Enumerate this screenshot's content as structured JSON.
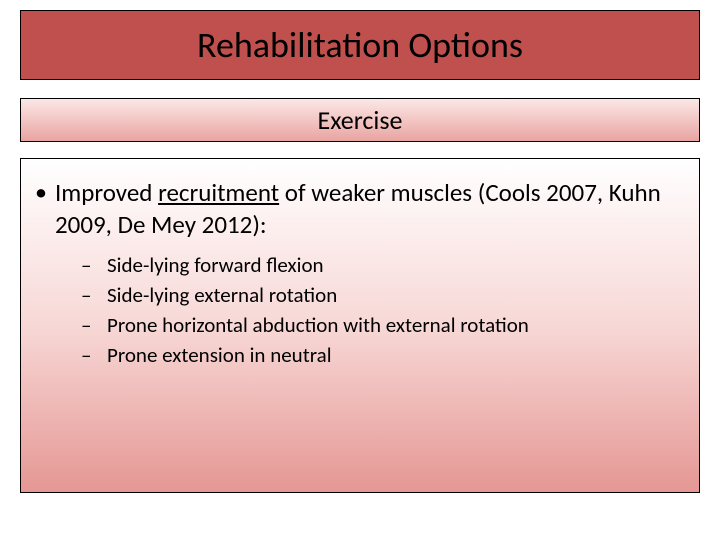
{
  "slide": {
    "title": "Rehabilitation Options",
    "subtitle": "Exercise",
    "title_box_color": "#c0504d",
    "subtitle_gradient_top": "#fbe8e7",
    "subtitle_gradient_bottom": "#e9a4a1",
    "content_gradient_top": "#ffffff",
    "content_gradient_bottom": "#e59794",
    "border_color": "#000000",
    "bullet": {
      "text_pre": "Improved ",
      "text_underlined": "recruitment",
      "text_post": " of weaker muscles (Cools 2007, Kuhn 2009, De Mey 2012):"
    },
    "sub_items": [
      "Side-lying forward flexion",
      "Side-lying external rotation",
      "Prone horizontal abduction with external rotation",
      "Prone extension in neutral"
    ]
  },
  "typography": {
    "title_fontsize": 36,
    "subtitle_fontsize": 26,
    "bullet_fontsize": 25,
    "sub_fontsize": 21
  }
}
